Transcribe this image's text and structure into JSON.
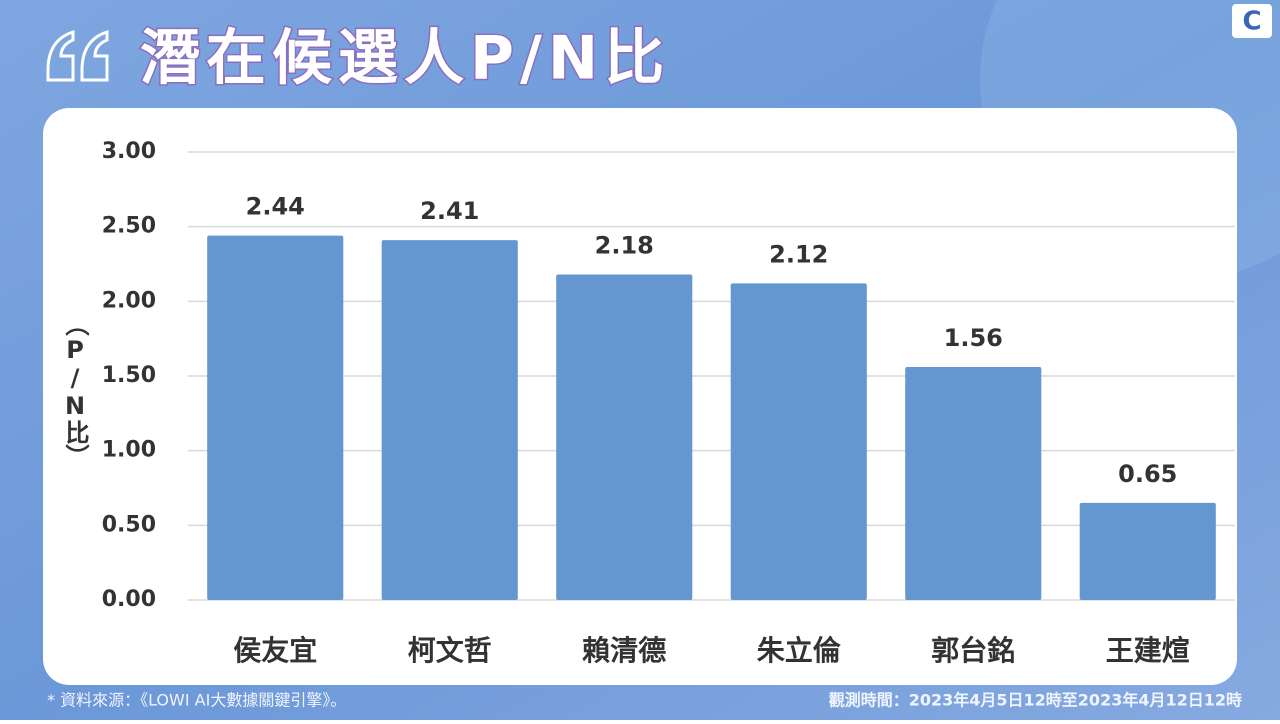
{
  "chart_data": {
    "type": "bar",
    "title": "潛在候選人P/N比",
    "y_label": "（P/N比）",
    "categories": [
      "侯友宜",
      "柯文哲",
      "賴清德",
      "朱立倫",
      "郭台銘",
      "王建煊"
    ],
    "values": [
      2.44,
      2.41,
      2.18,
      2.12,
      1.56,
      0.65
    ],
    "color": "#6497cf",
    "ylim": [
      0,
      3
    ],
    "yticks": [
      {
        "value": 0,
        "label": "0.00"
      },
      {
        "value": 0.5,
        "label": "0.50"
      },
      {
        "value": 1,
        "label": "1.00"
      },
      {
        "value": 1.5,
        "label": "1.50"
      },
      {
        "value": 2,
        "label": "2.00"
      },
      {
        "value": 2.5,
        "label": "2.50"
      },
      {
        "value": 3,
        "label": "3.00"
      }
    ],
    "grid": true,
    "source_note": "* 資料來源：《LOWI AI大數據關鍵引擎》。",
    "period_note": "觀測時間：2023年4月5日12時至2023年4月12日12時"
  },
  "logo": "C"
}
